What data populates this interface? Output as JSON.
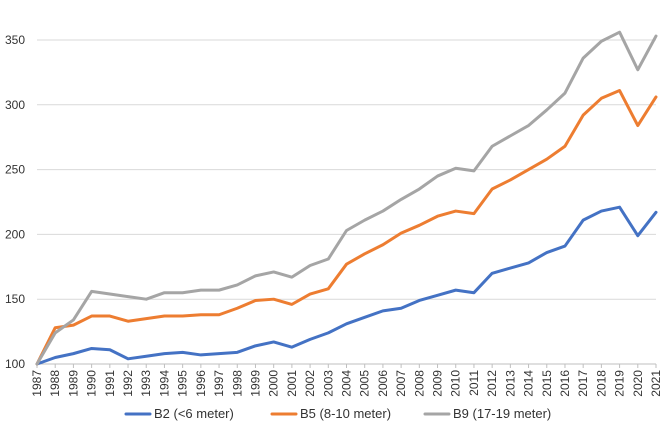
{
  "chart_data": {
    "type": "line",
    "title": "",
    "xlabel": "",
    "ylabel": "",
    "ylim": [
      100,
      360
    ],
    "yticks": [
      100,
      150,
      200,
      250,
      300,
      350
    ],
    "grid": "horizontal",
    "legend_position": "bottom",
    "x": [
      "1987",
      "1988",
      "1989",
      "1990",
      "1991",
      "1992",
      "1993",
      "1994",
      "1995",
      "1996",
      "1997",
      "1998",
      "1999",
      "2000",
      "2001",
      "2002",
      "2003",
      "2004",
      "2005",
      "2006",
      "2007",
      "2008",
      "2009",
      "2010",
      "2011",
      "2012",
      "2013",
      "2014",
      "2015",
      "2016",
      "2017",
      "2018",
      "2019",
      "2020",
      "2021"
    ],
    "series": [
      {
        "name": "B2 (<6 meter)",
        "color": "#4472C4",
        "values": [
          100,
          105,
          108,
          112,
          111,
          104,
          106,
          108,
          109,
          107,
          108,
          109,
          114,
          117,
          113,
          119,
          124,
          131,
          136,
          141,
          143,
          149,
          153,
          157,
          155,
          170,
          174,
          178,
          186,
          191,
          211,
          218,
          221,
          199,
          217
        ]
      },
      {
        "name": "B5 (8-10 meter)",
        "color": "#ED7D31",
        "values": [
          100,
          128,
          130,
          137,
          137,
          133,
          135,
          137,
          137,
          138,
          138,
          143,
          149,
          150,
          146,
          154,
          158,
          177,
          185,
          192,
          201,
          207,
          214,
          218,
          216,
          235,
          242,
          250,
          258,
          268,
          292,
          305,
          311,
          284,
          306
        ]
      },
      {
        "name": "B9 (17-19 meter)",
        "color": "#A5A5A5",
        "values": [
          100,
          124,
          134,
          156,
          154,
          152,
          150,
          155,
          155,
          157,
          157,
          161,
          168,
          171,
          167,
          176,
          181,
          203,
          211,
          218,
          227,
          235,
          245,
          251,
          249,
          268,
          276,
          284,
          296,
          309,
          336,
          349,
          356,
          327,
          353
        ]
      }
    ]
  }
}
